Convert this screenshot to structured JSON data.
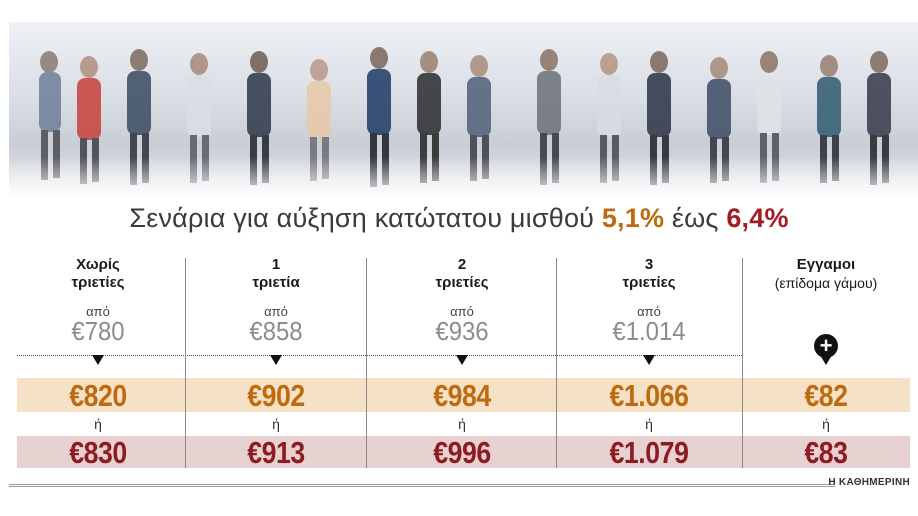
{
  "title": {
    "prefix": "Σενάρια για αύξηση κατώτατου μισθού ",
    "low": "5,1%",
    "middle": " έως ",
    "high": "6,4%"
  },
  "columns": [
    {
      "header": "Χωρίς",
      "sub": "τριετίες",
      "from_label": "από",
      "current": "€780",
      "scenario_low": "€820",
      "or_label": "ή",
      "scenario_high": "€830"
    },
    {
      "header": "1",
      "sub": "τριετία",
      "from_label": "από",
      "current": "€858",
      "scenario_low": "€902",
      "or_label": "ή",
      "scenario_high": "€913"
    },
    {
      "header": "2",
      "sub": "τριετίες",
      "from_label": "από",
      "current": "€936",
      "scenario_low": "€984",
      "or_label": "ή",
      "scenario_high": "€996"
    },
    {
      "header": "3",
      "sub": "τριετίες",
      "from_label": "από",
      "current": "€1.014",
      "scenario_low": "€1.066",
      "or_label": "ή",
      "scenario_high": "€1.079"
    }
  ],
  "married": {
    "header": "Εγγαμοι",
    "note": "(επίδομα γάμου)",
    "icon": "plus-circle-icon",
    "plus_symbol": "+",
    "scenario_low": "€82",
    "or_label": "ή",
    "scenario_high": "€83"
  },
  "source": "Η ΚΑΘΗΜΕΡΙΝΗ",
  "colors": {
    "low_accent": "#c06a0f",
    "high_accent": "#8f1b22",
    "low_band": "#f5e1c6",
    "high_band": "#e8d2d1"
  }
}
